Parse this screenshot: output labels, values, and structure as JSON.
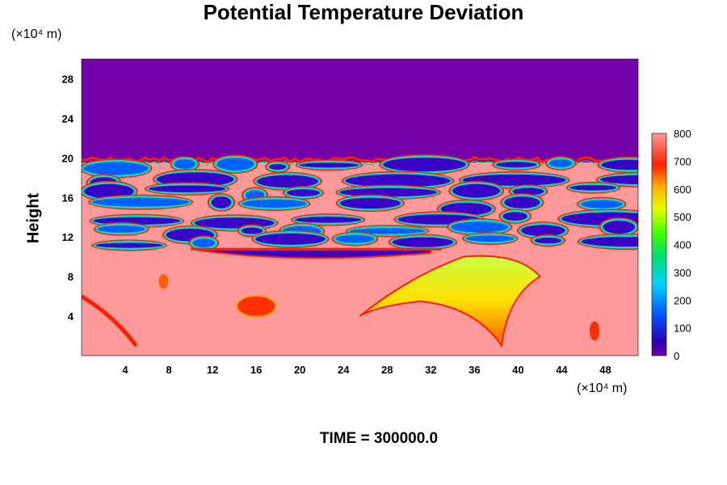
{
  "chart_data": {
    "type": "heatmap",
    "title": "Potential Temperature Deviation",
    "ylabel": "Height",
    "y_unit": "(×10⁴ m)",
    "x_unit": "(×10⁴ m)",
    "x_ticks": [
      4,
      8,
      12,
      16,
      20,
      24,
      28,
      32,
      36,
      40,
      44,
      48
    ],
    "y_ticks": [
      4,
      8,
      12,
      16,
      20,
      24,
      28
    ],
    "xlim": [
      0,
      51
    ],
    "ylim": [
      0,
      30
    ],
    "colorbar": {
      "ticks": [
        0,
        100,
        200,
        300,
        400,
        500,
        600,
        700,
        800
      ],
      "range": [
        0,
        800
      ]
    },
    "regions": {
      "upper_layer_value": 0,
      "lower_layer_value": 800,
      "interface_height": 19.8,
      "turbulent_band_range": [
        11,
        20
      ]
    },
    "time_label": "TIME = 300000.0"
  }
}
